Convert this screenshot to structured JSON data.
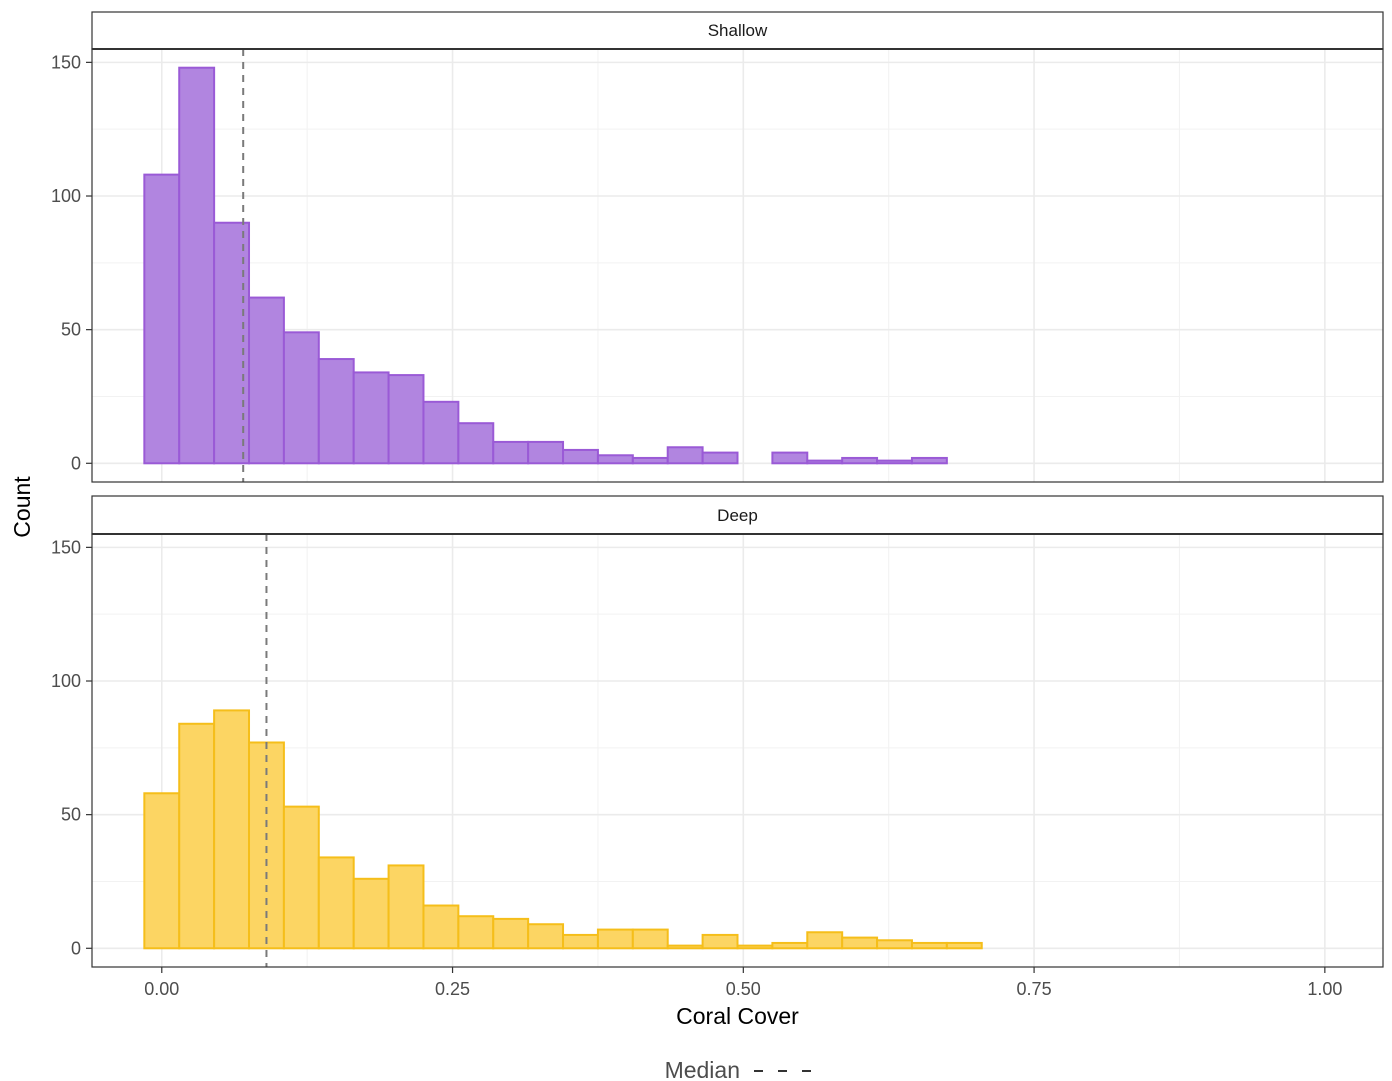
{
  "chart_data": {
    "type": "bar",
    "xlabel": "Coral Cover",
    "ylabel": "Count",
    "xlim": [
      -0.06,
      1.05
    ],
    "ylim": [
      -7,
      155
    ],
    "x_ticks": [
      0.0,
      0.25,
      0.5,
      0.75,
      1.0
    ],
    "x_tick_labels": [
      "0.00",
      "0.25",
      "0.50",
      "0.75",
      "1.00"
    ],
    "y_ticks": [
      0,
      50,
      100,
      150
    ],
    "y_tick_labels": [
      "0",
      "50",
      "100",
      "150"
    ],
    "bin_start": -0.015,
    "bin_width": 0.03,
    "grid": true,
    "legend": {
      "label": "Median",
      "placement": "bottom"
    },
    "panels": [
      {
        "name": "Shallow",
        "fill": "#b185e0",
        "stroke": "#9a5ad6",
        "median": 0.07,
        "values": [
          108,
          148,
          90,
          62,
          49,
          39,
          34,
          33,
          23,
          15,
          8,
          8,
          5,
          3,
          2,
          6,
          4,
          0,
          4,
          1,
          2,
          1,
          2,
          0,
          0,
          0,
          0,
          0,
          0,
          0,
          0,
          0,
          0
        ]
      },
      {
        "name": "Deep",
        "fill": "#fcd563",
        "stroke": "#f5be1a",
        "median": 0.09,
        "values": [
          58,
          84,
          89,
          77,
          53,
          34,
          26,
          31,
          16,
          12,
          11,
          9,
          5,
          7,
          7,
          1,
          5,
          1,
          2,
          6,
          4,
          3,
          2,
          2,
          0,
          0,
          0,
          0,
          0,
          0,
          0,
          0,
          0
        ]
      }
    ]
  }
}
